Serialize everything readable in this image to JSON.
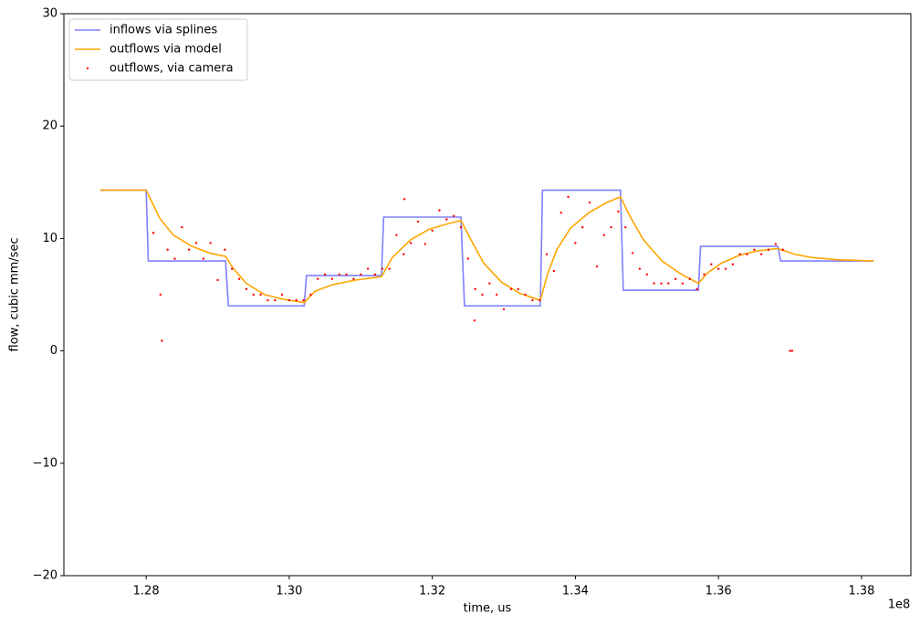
{
  "chart_data": {
    "type": "line",
    "xlabel": "time, us",
    "ylabel": "flow, cubic mm/sec",
    "x_offset_label": "1e8",
    "xlim": [
      1.2685,
      1.3869
    ],
    "ylim": [
      -20,
      30
    ],
    "xticks": [
      1.28,
      {
        "value": 1.3,
        "label": "1.30"
      },
      1.32,
      1.34,
      1.36,
      1.38
    ],
    "yticks": [
      {
        "value": -20,
        "label": "−20"
      },
      {
        "value": -10,
        "label": "−10"
      },
      0,
      10,
      20,
      30
    ],
    "grid": false,
    "legend": "upper left",
    "series": [
      {
        "name": "inflows via splines",
        "type": "line",
        "color": "#8080ff",
        "x": [
          1.2736,
          1.28,
          1.2803,
          1.2911,
          1.2915,
          1.3021,
          1.3024,
          1.3129,
          1.3132,
          1.324,
          1.3245,
          1.3351,
          1.3354,
          1.3463,
          1.3467,
          1.3572,
          1.3575,
          1.3683,
          1.3687,
          1.3817
        ],
        "values": [
          14.3,
          14.3,
          8.0,
          8.0,
          4.0,
          4.0,
          6.7,
          6.7,
          11.9,
          11.9,
          4.0,
          4.0,
          14.3,
          14.3,
          5.4,
          5.4,
          9.3,
          9.3,
          8.0,
          8.0
        ]
      },
      {
        "name": "outflows via model",
        "type": "line",
        "color": "#ffa500",
        "x": [
          1.2736,
          1.28,
          1.2806,
          1.2819,
          1.2838,
          1.2864,
          1.2889,
          1.2911,
          1.2921,
          1.294,
          1.2966,
          1.2991,
          1.3021,
          1.3036,
          1.3061,
          1.3093,
          1.3129,
          1.3144,
          1.317,
          1.3195,
          1.3221,
          1.324,
          1.3253,
          1.3272,
          1.3297,
          1.3323,
          1.3351,
          1.3361,
          1.3374,
          1.3393,
          1.3419,
          1.3444,
          1.3463,
          1.3476,
          1.3495,
          1.3521,
          1.3546,
          1.3572,
          1.3584,
          1.3604,
          1.3629,
          1.3655,
          1.3683,
          1.3706,
          1.3731,
          1.3769,
          1.3817
        ],
        "values": [
          14.3,
          14.3,
          13.5,
          11.8,
          10.3,
          9.3,
          8.7,
          8.4,
          7.4,
          6.0,
          5.0,
          4.6,
          4.3,
          5.3,
          5.9,
          6.3,
          6.6,
          8.3,
          9.9,
          10.8,
          11.3,
          11.6,
          10.0,
          7.8,
          6.1,
          5.1,
          4.5,
          6.8,
          9.0,
          10.9,
          12.3,
          13.2,
          13.7,
          12.0,
          9.9,
          8.0,
          6.9,
          6.0,
          6.9,
          7.8,
          8.5,
          8.9,
          9.1,
          8.6,
          8.3,
          8.1,
          8.0
        ]
      },
      {
        "name": "outflows, via camera",
        "type": "scatter",
        "color": "#ff0000",
        "x": [
          1.281,
          1.282,
          1.283,
          1.284,
          1.285,
          1.286,
          1.287,
          1.288,
          1.289,
          1.29,
          1.291,
          1.292,
          1.293,
          1.294,
          1.295,
          1.296,
          1.297,
          1.298,
          1.299,
          1.3,
          1.301,
          1.302,
          1.303,
          1.304,
          1.305,
          1.306,
          1.307,
          1.308,
          1.309,
          1.31,
          1.311,
          1.312,
          1.313,
          1.314,
          1.315,
          1.316,
          1.317,
          1.318,
          1.319,
          1.32,
          1.321,
          1.322,
          1.323,
          1.324,
          1.325,
          1.326,
          1.327,
          1.328,
          1.329,
          1.33,
          1.331,
          1.332,
          1.333,
          1.334,
          1.335,
          1.336,
          1.337,
          1.338,
          1.339,
          1.34,
          1.341,
          1.342,
          1.343,
          1.344,
          1.345,
          1.346,
          1.347,
          1.348,
          1.349,
          1.35,
          1.351,
          1.352,
          1.353,
          1.354,
          1.355,
          1.356,
          1.357,
          1.358,
          1.359,
          1.36,
          1.361,
          1.362,
          1.363,
          1.364,
          1.365,
          1.366,
          1.367,
          1.368,
          1.369,
          1.37,
          1.2822,
          1.3161,
          1.3259,
          1.3703
        ],
        "values": [
          10.5,
          5.0,
          9.0,
          8.2,
          11.0,
          9.0,
          9.6,
          8.2,
          9.6,
          6.3,
          9.0,
          7.3,
          6.4,
          5.5,
          5.0,
          5.0,
          4.5,
          4.5,
          5.0,
          4.5,
          4.5,
          4.5,
          5.0,
          6.4,
          6.8,
          6.4,
          6.8,
          6.8,
          6.4,
          6.8,
          7.3,
          6.8,
          7.3,
          7.3,
          10.3,
          8.6,
          9.6,
          11.5,
          9.5,
          10.7,
          12.5,
          11.7,
          12.0,
          11.0,
          8.2,
          5.5,
          5.0,
          6.0,
          5.0,
          3.7,
          5.5,
          5.5,
          5.0,
          4.5,
          4.5,
          8.6,
          7.1,
          12.3,
          13.7,
          9.6,
          11.0,
          13.2,
          7.5,
          10.3,
          11.0,
          12.4,
          11.0,
          8.7,
          7.3,
          6.8,
          6.0,
          6.0,
          6.0,
          6.4,
          6.0,
          6.4,
          5.5,
          6.8,
          7.7,
          7.3,
          7.3,
          7.7,
          8.6,
          8.6,
          9.0,
          8.6,
          9.0,
          9.5,
          9.0,
          0.0,
          0.9,
          13.5,
          2.7,
          0.0
        ]
      }
    ]
  }
}
